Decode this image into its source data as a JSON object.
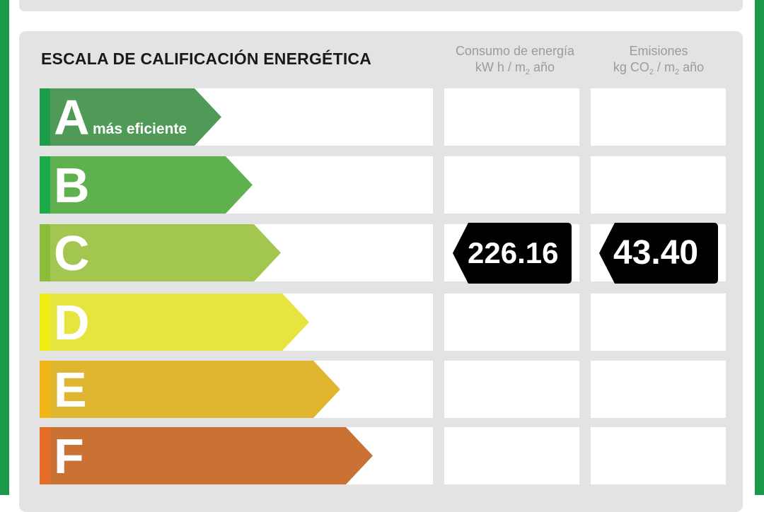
{
  "title": "ESCALA DE CALIFICACIÓN ENERGÉTICA",
  "energy_header": {
    "line1": "Consumo de energía",
    "line2_pre": "kW h / m",
    "line2_sub": "2",
    "line2_post": " año"
  },
  "emissions_header": {
    "line1": "Emisiones",
    "line2_pre": "kg CO",
    "line2_sub1": "2",
    "line2_mid": " / m",
    "line2_sub2": "2",
    "line2_post": " año"
  },
  "grades": [
    {
      "letter": "A",
      "subtitle": "más eficiente",
      "color": "#4e9a56",
      "accent": "#1c9c48"
    },
    {
      "letter": "B",
      "color": "#5fb04e",
      "accent": "#1caa4a"
    },
    {
      "letter": "C",
      "color": "#a2c64f",
      "accent": "#8bbd3b"
    },
    {
      "letter": "D",
      "color": "#e6e43e",
      "accent": "#f2ec15"
    },
    {
      "letter": "E",
      "color": "#e0b530",
      "accent": "#f2b717"
    },
    {
      "letter": "F",
      "color": "#c97234",
      "accent": "#e56d25"
    }
  ],
  "rating": {
    "grade": "C",
    "energy_value": "226.16",
    "emissions_value": "43.40",
    "badge_color": "#000000"
  }
}
